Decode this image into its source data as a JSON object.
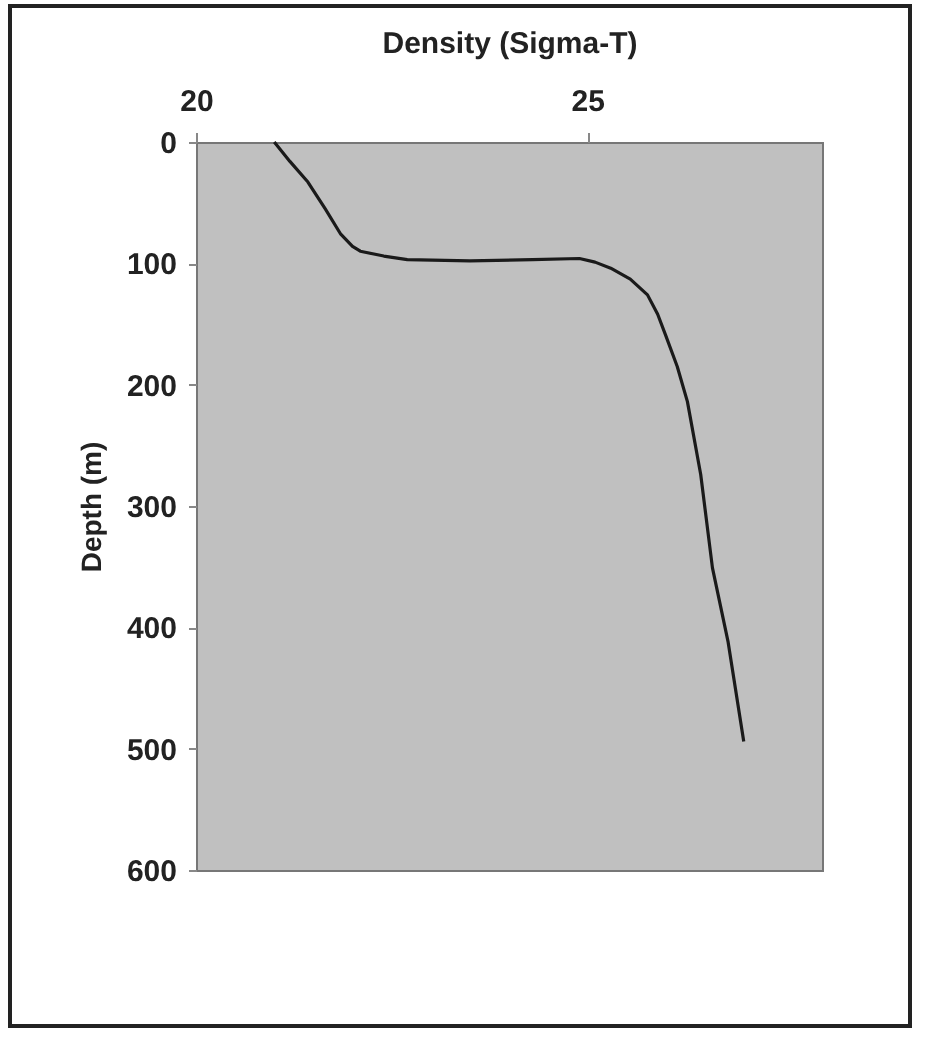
{
  "chart_data": {
    "type": "line",
    "xlabel": "Density (Sigma-T)",
    "ylabel": "Depth (m)",
    "x": [
      21.0,
      21.2,
      21.43,
      21.65,
      21.85,
      22.0,
      22.1,
      22.4,
      22.7,
      23.5,
      24.3,
      24.9,
      25.1,
      25.3,
      25.55,
      25.77,
      25.9,
      26.0,
      26.15,
      26.28,
      26.45,
      26.6,
      26.8,
      27.0
    ],
    "series": [
      {
        "color": "#1a1a1a",
        "values": [
          0,
          16,
          33,
          55,
          76,
          86,
          90,
          94,
          97,
          98,
          97,
          96,
          99,
          104,
          113,
          126,
          142,
          159,
          185,
          214,
          274,
          351,
          412,
          494
        ]
      }
    ],
    "xlim": [
      20,
      28
    ],
    "xticks": [
      20,
      25
    ],
    "ylim": [
      600,
      0
    ],
    "yticks": [
      0,
      100,
      200,
      300,
      400,
      500,
      600
    ],
    "grid": false,
    "marker": "none",
    "line_style": "solid"
  }
}
